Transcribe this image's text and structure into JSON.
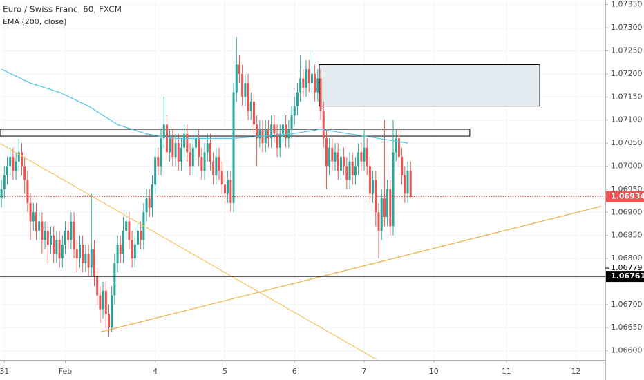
{
  "chart_data": {
    "type": "candlestick",
    "title": "Euro / Swiss Franc, 60, FXCM",
    "up_color": "#26a69a",
    "down_color": "#ef5350",
    "grid": true,
    "xlim": [
      -0.5,
      208.1
    ],
    "ylim": [
      1.0658,
      1.0736
    ],
    "xticks": [
      {
        "value": 1,
        "label": "31"
      },
      {
        "value": 22,
        "label": "Feb"
      },
      {
        "value": 53,
        "label": "4"
      },
      {
        "value": 77,
        "label": "5"
      },
      {
        "value": 101,
        "label": "6"
      },
      {
        "value": 125,
        "label": "7"
      },
      {
        "value": 149,
        "label": "10"
      },
      {
        "value": 174,
        "label": "11"
      },
      {
        "value": 198,
        "label": "12"
      }
    ],
    "yticks": [
      {
        "value": 1.066,
        "label": "1.06600"
      },
      {
        "value": 1.0665,
        "label": "1.06650"
      },
      {
        "value": 1.067,
        "label": "1.06700"
      },
      {
        "value": 1.068,
        "label": "1.06800"
      },
      {
        "value": 1.0685,
        "label": "1.06850"
      },
      {
        "value": 1.069,
        "label": "1.06900"
      },
      {
        "value": 1.0695,
        "label": "1.06950"
      },
      {
        "value": 1.07,
        "label": "1.07000"
      },
      {
        "value": 1.0705,
        "label": "1.07050"
      },
      {
        "value": 1.071,
        "label": "1.07100"
      },
      {
        "value": 1.0715,
        "label": "1.07150"
      },
      {
        "value": 1.072,
        "label": "1.07200"
      },
      {
        "value": 1.0725,
        "label": "1.07250"
      },
      {
        "value": 1.073,
        "label": "1.07300"
      },
      {
        "value": 1.0735,
        "label": "1.07350"
      }
    ],
    "open": [
      1.0693,
      1.0695,
      1.0698,
      1.07,
      1.0702,
      1.0699,
      1.0701,
      1.0703,
      1.07,
      1.0697,
      1.0692,
      1.0688,
      1.069,
      1.0686,
      1.0688,
      1.0684,
      1.0686,
      1.0683,
      1.0685,
      1.0681,
      1.0684,
      1.068,
      1.0683,
      1.0686,
      1.0684,
      1.0688,
      1.0682,
      1.068,
      1.0683,
      1.0679,
      1.0681,
      1.0678,
      1.0682,
      1.0676,
      1.0672,
      1.0669,
      1.0673,
      1.0668,
      1.0665,
      1.0672,
      1.0679,
      1.0683,
      1.0681,
      1.0686,
      1.0688,
      1.0684,
      1.068,
      1.0683,
      1.0686,
      1.0684,
      1.069,
      1.0693,
      1.0691,
      1.0696,
      1.0702,
      1.07,
      1.0706,
      1.0709,
      1.0703,
      1.0706,
      1.0702,
      1.0705,
      1.0701,
      1.0704,
      1.0707,
      1.0703,
      1.07,
      1.0704,
      1.0706,
      1.0702,
      1.0699,
      1.0703,
      1.0705,
      1.0701,
      1.0698,
      1.0702,
      1.0699,
      1.0696,
      1.0694,
      1.0697,
      1.0692,
      1.0716,
      1.0722,
      1.072,
      1.0715,
      1.0718,
      1.0712,
      1.0714,
      1.0709,
      1.0706,
      1.0708,
      1.0705,
      1.0708,
      1.0706,
      1.0709,
      1.0707,
      1.0704,
      1.0707,
      1.0709,
      1.0706,
      1.0708,
      1.0711,
      1.0713,
      1.0716,
      1.0719,
      1.0717,
      1.0721,
      1.0718,
      1.072,
      1.0716,
      1.0719,
      1.0712,
      1.0706,
      1.07,
      1.0704,
      1.0701,
      1.0703,
      1.0699,
      1.0702,
      1.07,
      1.0697,
      1.0701,
      1.0698,
      1.07,
      1.0703,
      1.0701,
      1.0704,
      1.07,
      1.0694,
      1.0697,
      1.069,
      1.0686,
      1.0693,
      1.0689,
      1.0695,
      1.0687,
      1.0703,
      1.0706,
      1.0702,
      1.0698,
      1.0694,
      1.0699
    ],
    "high": [
      1.0697,
      1.07,
      1.0702,
      1.0704,
      1.0704,
      1.0703,
      1.0706,
      1.0705,
      1.0702,
      1.0699,
      1.0694,
      1.0692,
      1.0692,
      1.069,
      1.069,
      1.0688,
      1.0688,
      1.0687,
      1.0687,
      1.0686,
      1.0686,
      1.0685,
      1.0688,
      1.0688,
      1.069,
      1.069,
      1.0684,
      1.0685,
      1.0685,
      1.0683,
      1.0683,
      1.0694,
      1.0684,
      1.0678,
      1.0674,
      1.0675,
      1.0675,
      1.067,
      1.0674,
      1.0681,
      1.0685,
      1.0685,
      1.0689,
      1.069,
      1.069,
      1.0686,
      1.0685,
      1.0688,
      1.0688,
      1.0692,
      1.0695,
      1.0695,
      1.0698,
      1.0704,
      1.0704,
      1.0708,
      1.0715,
      1.0711,
      1.0708,
      1.0708,
      1.0707,
      1.0707,
      1.0706,
      1.0709,
      1.0709,
      1.0705,
      1.0706,
      1.0708,
      1.0708,
      1.0704,
      1.0705,
      1.0707,
      1.0707,
      1.0703,
      1.0704,
      1.0704,
      1.0701,
      1.0698,
      1.0699,
      1.0699,
      1.0718,
      1.0728,
      1.0724,
      1.0722,
      1.072,
      1.072,
      1.0716,
      1.0716,
      1.0711,
      1.071,
      1.071,
      1.071,
      1.071,
      1.0711,
      1.0711,
      1.0709,
      1.0709,
      1.0711,
      1.0711,
      1.071,
      1.0713,
      1.0715,
      1.0718,
      1.0724,
      1.0721,
      1.0723,
      1.0723,
      1.0725,
      1.0722,
      1.0721,
      1.0721,
      1.0714,
      1.0708,
      1.0706,
      1.0706,
      1.0705,
      1.0705,
      1.0704,
      1.0704,
      1.0702,
      1.0703,
      1.0703,
      1.0702,
      1.0705,
      1.0705,
      1.0708,
      1.0706,
      1.0702,
      1.0699,
      1.0699,
      1.0692,
      1.0695,
      1.071,
      1.0697,
      1.0697,
      1.071,
      1.0708,
      1.0708,
      1.0704,
      1.07,
      1.0701,
      1.0701
    ],
    "low": [
      1.0691,
      1.0693,
      1.0696,
      1.0698,
      1.0697,
      1.0697,
      1.0699,
      1.0698,
      1.0694,
      1.069,
      1.0684,
      1.0686,
      1.0684,
      1.0684,
      1.0681,
      1.0682,
      1.0679,
      1.0681,
      1.0679,
      1.0679,
      1.0678,
      1.0678,
      1.0681,
      1.0682,
      1.0682,
      1.068,
      1.0677,
      1.0678,
      1.0677,
      1.0677,
      1.0676,
      1.0676,
      1.0674,
      1.067,
      1.0666,
      1.0667,
      1.0665,
      1.0663,
      1.0664,
      1.067,
      1.0677,
      1.0679,
      1.0679,
      1.0684,
      1.0682,
      1.0678,
      1.0678,
      1.0681,
      1.0682,
      1.0682,
      1.0688,
      1.0689,
      1.0689,
      1.0694,
      1.0698,
      1.0698,
      1.0704,
      1.0701,
      1.0701,
      1.07,
      1.07,
      1.0699,
      1.0699,
      1.0702,
      1.0701,
      1.0698,
      1.0698,
      1.0702,
      1.07,
      1.0697,
      1.0697,
      1.0701,
      1.0699,
      1.0696,
      1.0696,
      1.0697,
      1.0694,
      1.0692,
      1.0692,
      1.069,
      1.069,
      1.0714,
      1.0718,
      1.0713,
      1.0713,
      1.071,
      1.071,
      1.0707,
      1.07,
      1.0704,
      1.0703,
      1.0703,
      1.0704,
      1.0704,
      1.0705,
      1.0702,
      1.0702,
      1.0705,
      1.0704,
      1.0704,
      1.0706,
      1.0709,
      1.0711,
      1.0714,
      1.0715,
      1.0715,
      1.0716,
      1.0716,
      1.0714,
      1.0714,
      1.071,
      1.0704,
      1.0695,
      1.0698,
      1.0699,
      1.0699,
      1.0697,
      1.0697,
      1.0698,
      1.0695,
      1.0695,
      1.0696,
      1.0696,
      1.0698,
      1.0699,
      1.0699,
      1.0698,
      1.0692,
      1.0692,
      1.0687,
      1.068,
      1.0684,
      1.0687,
      1.0687,
      1.0685,
      1.0685,
      1.0701,
      1.07,
      1.0696,
      1.0692,
      1.0692,
      1.0693
    ],
    "close": [
      1.0695,
      1.0698,
      1.07,
      1.0702,
      1.0699,
      1.0701,
      1.0703,
      1.07,
      1.0697,
      1.0692,
      1.0688,
      1.069,
      1.0686,
      1.0688,
      1.0684,
      1.0686,
      1.0683,
      1.0685,
      1.0681,
      1.0684,
      1.068,
      1.0683,
      1.0686,
      1.0684,
      1.0688,
      1.0682,
      1.068,
      1.0683,
      1.0679,
      1.0681,
      1.0678,
      1.0682,
      1.0676,
      1.0672,
      1.0669,
      1.0673,
      1.0668,
      1.0665,
      1.0672,
      1.0679,
      1.0683,
      1.0681,
      1.0686,
      1.0688,
      1.0684,
      1.068,
      1.0683,
      1.0686,
      1.0684,
      1.069,
      1.0693,
      1.0691,
      1.0696,
      1.0702,
      1.07,
      1.0706,
      1.0709,
      1.0703,
      1.0706,
      1.0702,
      1.0705,
      1.0701,
      1.0704,
      1.0707,
      1.0703,
      1.07,
      1.0704,
      1.0706,
      1.0702,
      1.0699,
      1.0703,
      1.0705,
      1.0701,
      1.0698,
      1.0702,
      1.0699,
      1.0696,
      1.0694,
      1.0697,
      1.0692,
      1.0716,
      1.0722,
      1.072,
      1.0715,
      1.0718,
      1.0712,
      1.0714,
      1.0709,
      1.0706,
      1.0708,
      1.0705,
      1.0708,
      1.0706,
      1.0709,
      1.0707,
      1.0704,
      1.0707,
      1.0709,
      1.0706,
      1.0708,
      1.0711,
      1.0713,
      1.0716,
      1.0719,
      1.0717,
      1.0721,
      1.0718,
      1.072,
      1.0716,
      1.0719,
      1.0712,
      1.0706,
      1.07,
      1.0704,
      1.0701,
      1.0703,
      1.0699,
      1.0702,
      1.07,
      1.0697,
      1.0701,
      1.0698,
      1.07,
      1.0703,
      1.0701,
      1.0704,
      1.07,
      1.0694,
      1.0697,
      1.069,
      1.0686,
      1.0693,
      1.0689,
      1.0695,
      1.0687,
      1.0703,
      1.0706,
      1.0702,
      1.0698,
      1.0694,
      1.0699,
      1.06934
    ],
    "ema": {
      "name": "EMA (200, close)",
      "color": "#5bc8df",
      "x": [
        0,
        10,
        20,
        30,
        40,
        50,
        60,
        70,
        80,
        90,
        100,
        110,
        120,
        130,
        140
      ],
      "values": [
        1.0721,
        1.0718,
        1.0716,
        1.0713,
        1.0709,
        1.0707,
        1.0706,
        1.0706,
        1.0706,
        1.07065,
        1.0707,
        1.0708,
        1.0707,
        1.0706,
        1.0705
      ]
    },
    "zones": [
      {
        "x": [
          109.5,
          185.5
        ],
        "y": [
          1.0713,
          1.0722
        ],
        "fill": "#dfe9ee",
        "stroke": "#000000"
      },
      {
        "x": [
          -0.5,
          161.4
        ],
        "y": [
          1.07065,
          1.0708
        ],
        "fill": "#ffffff",
        "stroke": "#000000"
      }
    ],
    "trendlines": [
      {
        "x": [
          -0.5,
          129.3
        ],
        "y": [
          1.07049,
          1.06581
        ],
        "color": "#f5c35b"
      },
      {
        "x": [
          34.3,
          206.7
        ],
        "y": [
          1.06641,
          1.06913
        ],
        "color": "#f2a93b"
      }
    ],
    "price_lines": [
      {
        "value": 1.06934,
        "label": "1.06934",
        "color": "#ef5350",
        "style": "dotted"
      },
      {
        "value": 1.06761,
        "label": "1.06761",
        "color": "#000000",
        "style": "solid"
      },
      {
        "value": 1.06779,
        "label": "1.06779",
        "color": "#000000",
        "style": "tick"
      }
    ]
  }
}
